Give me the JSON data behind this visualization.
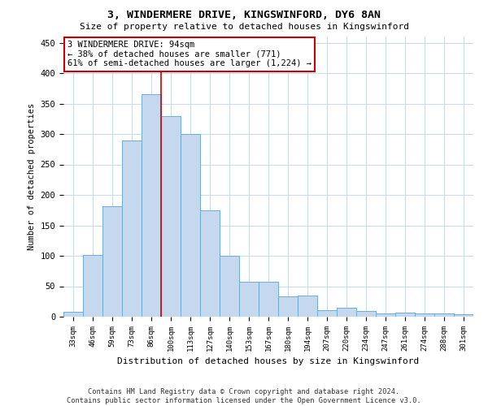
{
  "title1": "3, WINDERMERE DRIVE, KINGSWINFORD, DY6 8AN",
  "title2": "Size of property relative to detached houses in Kingswinford",
  "xlabel": "Distribution of detached houses by size in Kingswinford",
  "ylabel": "Number of detached properties",
  "footnote": "Contains HM Land Registry data © Crown copyright and database right 2024.\nContains public sector information licensed under the Open Government Licence v3.0.",
  "categories": [
    "33sqm",
    "46sqm",
    "59sqm",
    "73sqm",
    "86sqm",
    "100sqm",
    "113sqm",
    "127sqm",
    "140sqm",
    "153sqm",
    "167sqm",
    "180sqm",
    "194sqm",
    "207sqm",
    "220sqm",
    "234sqm",
    "247sqm",
    "261sqm",
    "274sqm",
    "288sqm",
    "301sqm"
  ],
  "values": [
    8,
    101,
    181,
    289,
    365,
    330,
    300,
    175,
    100,
    57,
    57,
    33,
    35,
    11,
    15,
    10,
    5,
    7,
    6,
    5,
    4
  ],
  "bar_color": "#c5d8ed",
  "bar_edge_color": "#6aaed6",
  "background_color": "#ffffff",
  "grid_color": "#c8d8e8",
  "annotation_line1": "3 WINDERMERE DRIVE: 94sqm",
  "annotation_line2": "← 38% of detached houses are smaller (771)",
  "annotation_line3": "61% of semi-detached houses are larger (1,224) →",
  "red_line_x": 4.5,
  "annotation_box_color": "#ffffff",
  "annotation_box_edge": "#cc0000",
  "red_line_color": "#cc0000",
  "ylim": [
    0,
    460
  ],
  "yticks": [
    0,
    50,
    100,
    150,
    200,
    250,
    300,
    350,
    400,
    450
  ]
}
